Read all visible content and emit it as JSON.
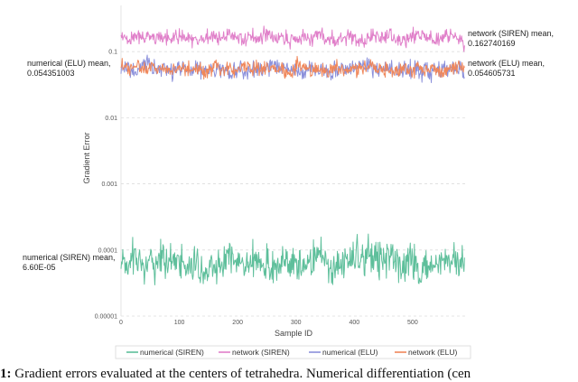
{
  "chart_data": {
    "type": "line",
    "ylabel": "Gradient Error",
    "xlabel": "Sample ID",
    "yscale": "log",
    "ylim": [
      1e-05,
      0.5
    ],
    "xlim": [
      0,
      590
    ],
    "y_ticks": [
      "0.1",
      "0.01",
      "0.001",
      "0.0001",
      "0.00001"
    ],
    "y_tick_values": [
      0.1,
      0.01,
      0.001,
      0.0001,
      1e-05
    ],
    "x_ticks": [
      "0",
      "100",
      "200",
      "300",
      "400",
      "500"
    ],
    "x_tick_values": [
      0,
      100,
      200,
      300,
      400,
      500
    ],
    "grid": "horizontal-dashed",
    "legend_position": "bottom",
    "series": [
      {
        "name": "numerical (SIREN)",
        "color": "#5ebf9b",
        "mean": 6.6e-05,
        "range": [
          1e-05,
          0.0003
        ]
      },
      {
        "name": "network (SIREN)",
        "color": "#e07fc9",
        "mean": 0.16274017,
        "range": [
          0.09,
          0.4
        ]
      },
      {
        "name": "numerical (ELU)",
        "color": "#8b90db",
        "mean": 0.054351003,
        "range": [
          0.017,
          0.09
        ]
      },
      {
        "name": "network (ELU)",
        "color": "#f0875a",
        "mean": 0.054605731,
        "range": [
          0.025,
          0.085
        ]
      }
    ],
    "annotations": [
      {
        "series": "numerical (ELU)",
        "side": "left",
        "line1": "numerical (ELU) mean,",
        "line2": "0.054351003"
      },
      {
        "series": "numerical (SIREN)",
        "side": "left",
        "line1": "numerical (SIREN) mean,",
        "line2": "6.60E-05"
      },
      {
        "series": "network (SIREN)",
        "side": "right",
        "line1": "network (SIREN)",
        "line2": "mean,",
        "line3": "0.162740169"
      },
      {
        "series": "network (ELU)",
        "side": "right",
        "line1": "network (ELU) mean,",
        "line2": "0.054605731"
      }
    ],
    "samples": 590
  },
  "caption": {
    "label": "1:",
    "text": " Gradient errors evaluated at the centers of tetrahedra. Numerical differentiation (cen"
  }
}
